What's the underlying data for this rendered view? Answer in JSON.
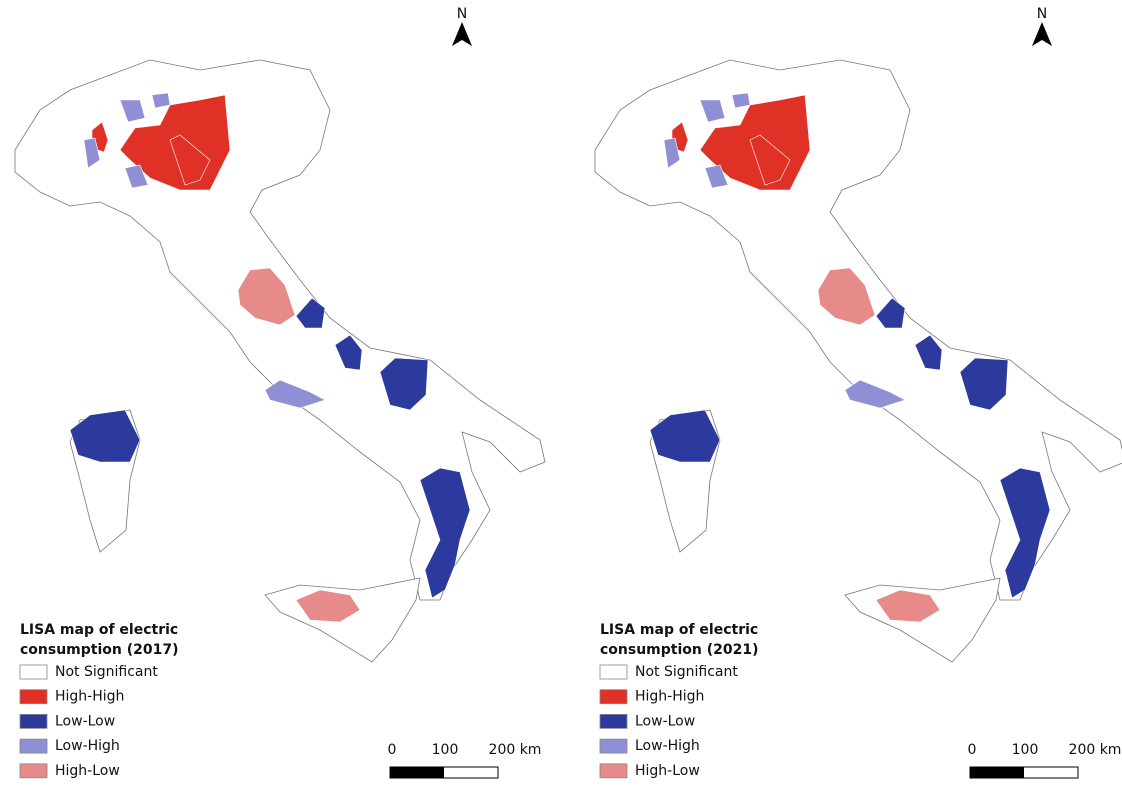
{
  "maps": [
    {
      "north": "N",
      "legend": {
        "title": [
          "LISA map of electric",
          "consumption (2017)"
        ],
        "classes": [
          {
            "label": "Not Significant",
            "color": "#ffffff"
          },
          {
            "label": "High-High",
            "color": "#e03127"
          },
          {
            "label": "Low-Low",
            "color": "#2b3a9c"
          },
          {
            "label": "Low-High",
            "color": "#8f8fd6"
          },
          {
            "label": "High-Low",
            "color": "#e68a8a"
          }
        ]
      },
      "scale": [
        "0",
        "100",
        "200 km"
      ]
    },
    {
      "north": "N",
      "legend": {
        "title": [
          "LISA map of electric",
          "consumption (2021)"
        ],
        "classes": [
          {
            "label": "Not Significant",
            "color": "#ffffff"
          },
          {
            "label": "High-High",
            "color": "#e03127"
          },
          {
            "label": "Low-Low",
            "color": "#2b3a9c"
          },
          {
            "label": "Low-High",
            "color": "#8f8fd6"
          },
          {
            "label": "High-Low",
            "color": "#e68a8a"
          }
        ]
      },
      "scale": [
        "0",
        "100",
        "200 km"
      ]
    }
  ]
}
